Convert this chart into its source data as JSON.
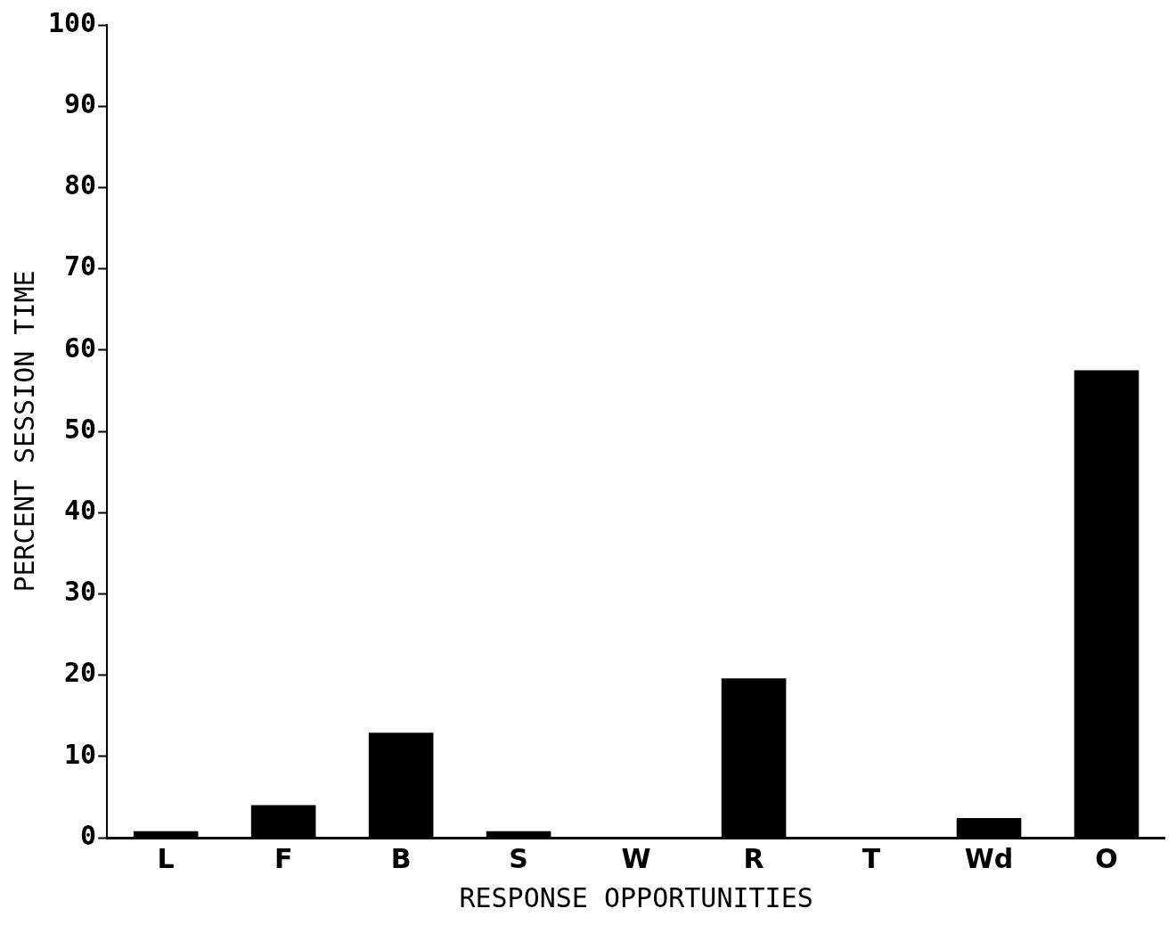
{
  "chart_data": {
    "type": "bar",
    "categories": [
      "L",
      "F",
      "B",
      "S",
      "W",
      "R",
      "T",
      "Wd",
      "O"
    ],
    "values": [
      0.8,
      4.0,
      12.9,
      0.8,
      0.1,
      19.6,
      0.1,
      2.4,
      57.5
    ],
    "color": "#000000",
    "xlabel": "RESPONSE OPPORTUNITIES",
    "ylabel": "PERCENT SESSION TIME",
    "ylim": [
      0,
      100
    ],
    "yticks": [
      0,
      10,
      20,
      30,
      40,
      50,
      60,
      70,
      80,
      90,
      100
    ],
    "grid": false,
    "legend": false
  }
}
